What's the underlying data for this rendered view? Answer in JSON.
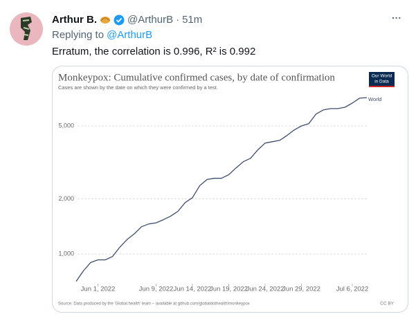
{
  "tweet": {
    "name": "Arthur B.",
    "handle": "@ArthurB",
    "separator": "·",
    "time": "51m",
    "more": "···",
    "reply_prefix": "Replying to",
    "reply_handle": "@ArthurB",
    "text": "Erratum, the correlation is 0.996, R² is 0.992"
  },
  "chart_data": {
    "type": "line",
    "title": "Monkeypox: Cumulative confirmed cases, by date of confirmation",
    "subtitle": "Cases are shown by the date on which they were confirmed by a test.",
    "logo": [
      "Our World",
      "in Data"
    ],
    "source": "Source: Data produced by the 'Global.health' team – available at github.com/globaldothealth/monkeypox",
    "license": "CC BY",
    "log_y": true,
    "grid": true,
    "x": [
      "2022-05-29",
      "2022-05-30",
      "2022-05-31",
      "2022-06-01",
      "2022-06-02",
      "2022-06-03",
      "2022-06-04",
      "2022-06-05",
      "2022-06-06",
      "2022-06-07",
      "2022-06-08",
      "2022-06-09",
      "2022-06-10",
      "2022-06-11",
      "2022-06-12",
      "2022-06-13",
      "2022-06-14",
      "2022-06-15",
      "2022-06-16",
      "2022-06-17",
      "2022-06-18",
      "2022-06-19",
      "2022-06-20",
      "2022-06-21",
      "2022-06-22",
      "2022-06-23",
      "2022-06-24",
      "2022-06-25",
      "2022-06-26",
      "2022-06-27",
      "2022-06-28",
      "2022-06-29",
      "2022-06-30",
      "2022-07-01",
      "2022-07-02",
      "2022-07-03",
      "2022-07-04",
      "2022-07-05",
      "2022-07-06",
      "2022-07-07",
      "2022-07-08"
    ],
    "series": [
      {
        "name": "World",
        "color": "#3d4d6e",
        "values": [
          710,
          810,
          900,
          930,
          930,
          970,
          1090,
          1200,
          1290,
          1410,
          1460,
          1480,
          1540,
          1610,
          1710,
          1910,
          2030,
          2360,
          2550,
          2590,
          2590,
          2710,
          2950,
          3190,
          3330,
          3700,
          4030,
          4100,
          4170,
          4430,
          4750,
          5000,
          5140,
          5800,
          6110,
          6210,
          6210,
          6320,
          6660,
          7080,
          7130
        ]
      }
    ],
    "xlim": [
      "2022-05-29",
      "2022-07-08"
    ],
    "xticks": [
      {
        "value": "2022-06-01",
        "label": "Jun 1, 2022"
      },
      {
        "value": "2022-06-09",
        "label": "Jun 9, 2022"
      },
      {
        "value": "2022-06-14",
        "label": "Jun 14, 2022"
      },
      {
        "value": "2022-06-19",
        "label": "Jun 19, 2022"
      },
      {
        "value": "2022-06-24",
        "label": "Jun 24, 2022"
      },
      {
        "value": "2022-06-29",
        "label": "Jun 29, 2022"
      },
      {
        "value": "2022-07-06",
        "label": "Jul 6, 2022"
      }
    ],
    "ylim": [
      690,
      7200
    ],
    "yticks": [
      {
        "value": 1000,
        "label": "1,000"
      },
      {
        "value": 2000,
        "label": "2,000"
      },
      {
        "value": 5000,
        "label": "5,000"
      }
    ]
  }
}
